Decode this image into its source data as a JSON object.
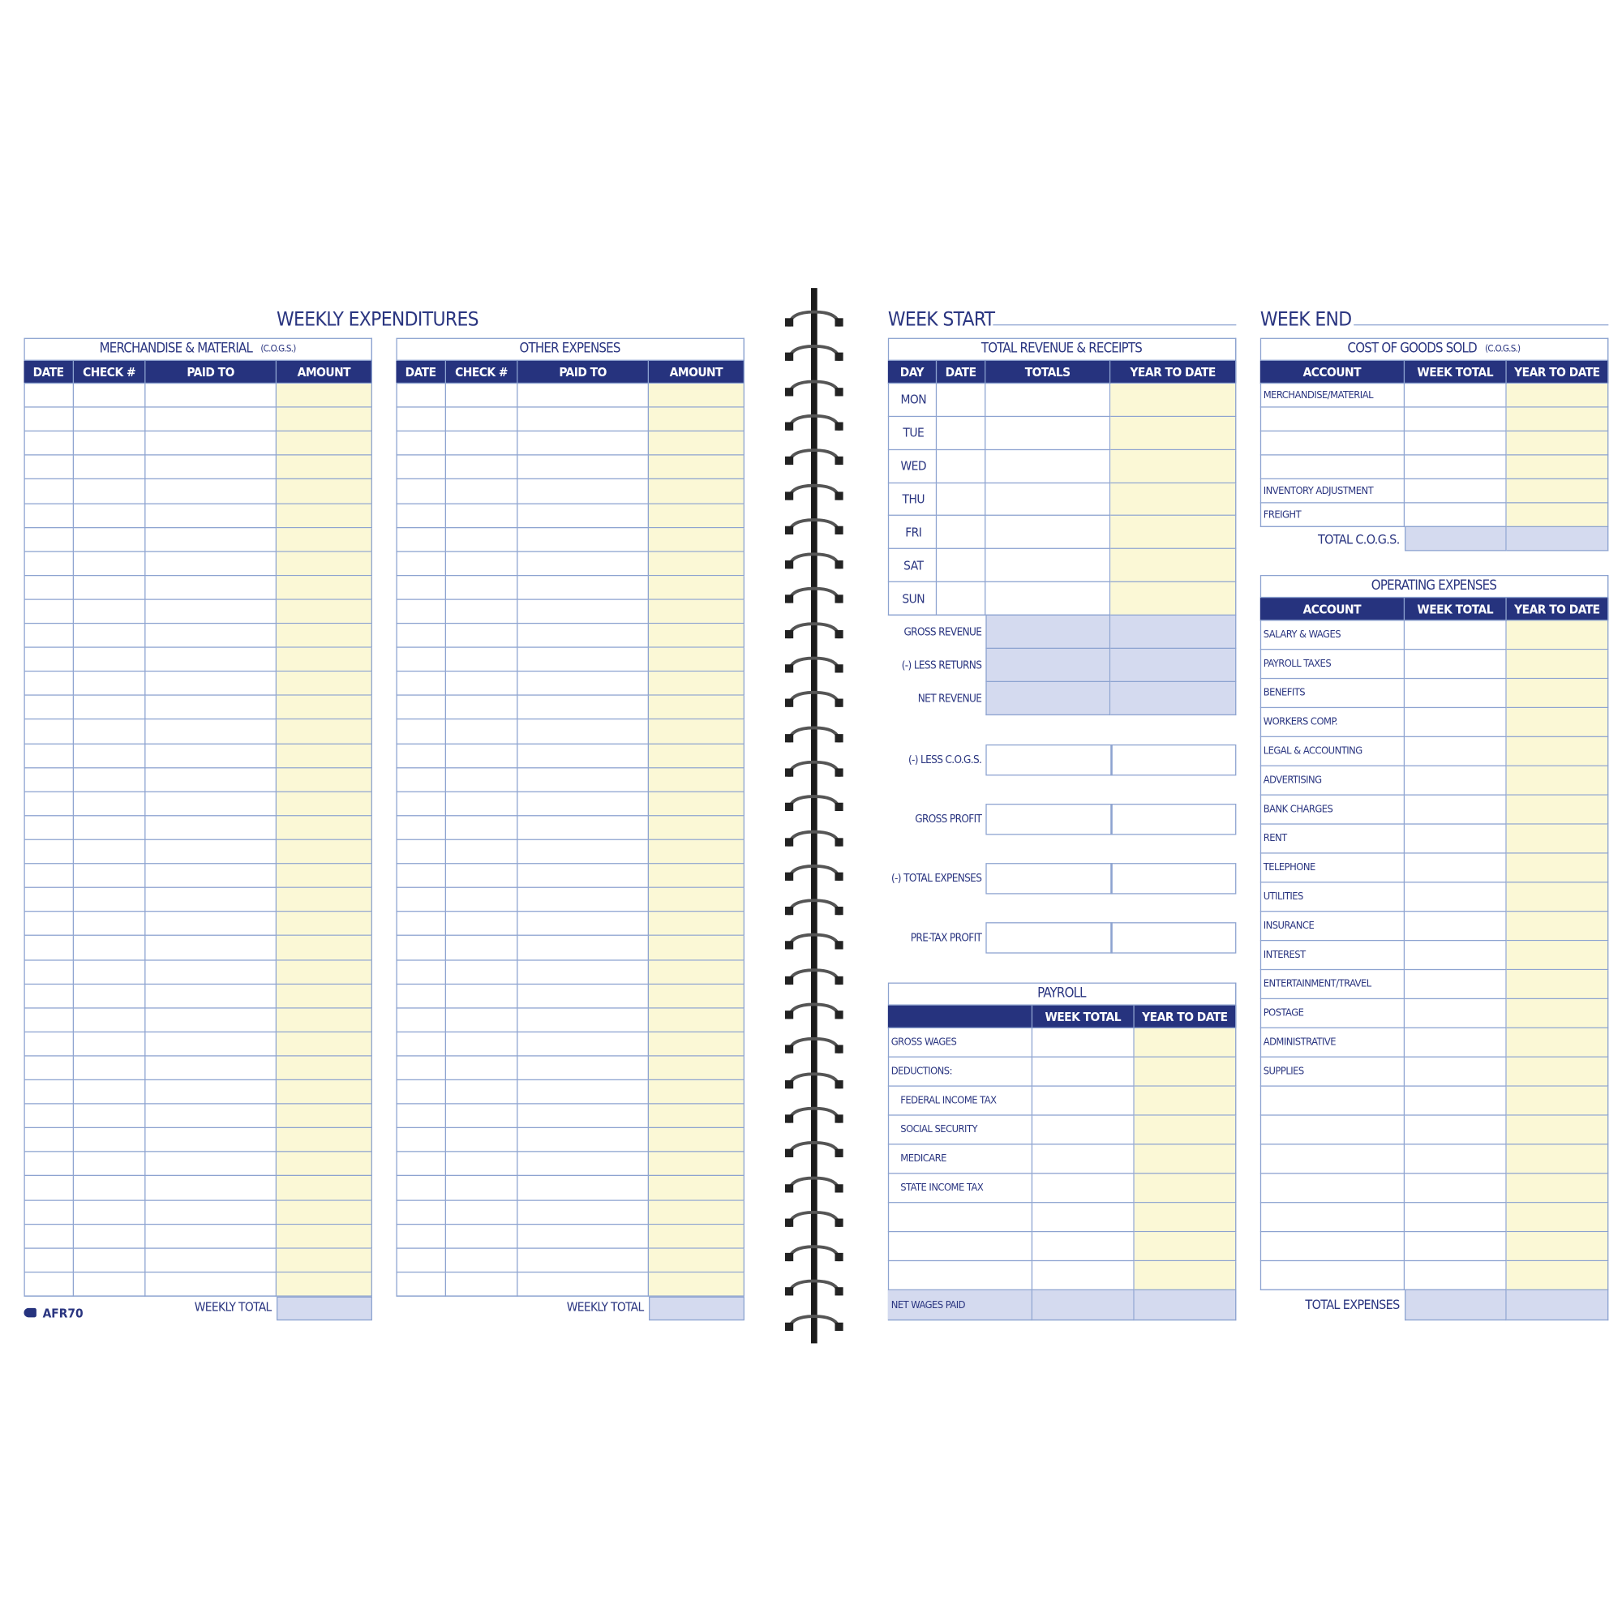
{
  "colors": {
    "navy": "#26337e",
    "line": "#8da3d0",
    "yellow": "#fbf8d6",
    "shade": "#d4daef"
  },
  "left_page": {
    "title": "WEEKLY EXPENDITURES",
    "merchandise": {
      "title": "MERCHANDISE & MATERIAL",
      "title_note": "(C.O.G.S.)",
      "columns": [
        "DATE",
        "CHECK #",
        "PAID TO",
        "AMOUNT"
      ],
      "total_label": "WEEKLY TOTAL"
    },
    "other": {
      "title": "OTHER EXPENSES",
      "columns": [
        "DATE",
        "CHECK #",
        "PAID TO",
        "AMOUNT"
      ],
      "total_label": "WEEKLY TOTAL"
    },
    "form_code": "AFR70"
  },
  "right_page": {
    "week_start_label": "WEEK START",
    "week_end_label": "WEEK END",
    "revenue": {
      "title": "TOTAL REVENUE & RECEIPTS",
      "columns": [
        "DAY",
        "DATE",
        "TOTALS",
        "YEAR TO DATE"
      ],
      "days": [
        "MON",
        "TUE",
        "WED",
        "THU",
        "FRI",
        "SAT",
        "SUN"
      ],
      "summary": [
        "GROSS REVENUE",
        "(-) LESS RETURNS",
        "NET REVENUE"
      ],
      "calc": [
        "(-) LESS C.O.G.S.",
        "GROSS PROFIT",
        "(-) TOTAL EXPENSES",
        "PRE-TAX PROFIT"
      ]
    },
    "payroll": {
      "title": "PAYROLL",
      "columns": [
        "",
        "WEEK TOTAL",
        "YEAR TO DATE"
      ],
      "rows": [
        "GROSS WAGES",
        "DEDUCTIONS:",
        "FEDERAL INCOME TAX",
        "SOCIAL SECURITY",
        "MEDICARE",
        "STATE INCOME TAX",
        "",
        "",
        ""
      ],
      "total_label": "NET WAGES PAID"
    },
    "cogs": {
      "title": "COST OF GOODS SOLD",
      "title_note": "(C.O.G.S.)",
      "columns": [
        "ACCOUNT",
        "WEEK TOTAL",
        "YEAR TO DATE"
      ],
      "rows": [
        "MERCHANDISE/MATERIAL",
        "",
        "",
        "",
        "INVENTORY ADJUSTMENT",
        "FREIGHT"
      ],
      "total_label": "TOTAL C.O.G.S."
    },
    "operating": {
      "title": "OPERATING EXPENSES",
      "columns": [
        "ACCOUNT",
        "WEEK TOTAL",
        "YEAR TO DATE"
      ],
      "rows": [
        "SALARY & WAGES",
        "PAYROLL TAXES",
        "BENEFITS",
        "WORKERS COMP.",
        "LEGAL & ACCOUNTING",
        "ADVERTISING",
        "BANK CHARGES",
        "RENT",
        "TELEPHONE",
        "UTILITIES",
        "INSURANCE",
        "INTEREST",
        "ENTERTAINMENT/TRAVEL",
        "POSTAGE",
        "ADMINISTRATIVE",
        "SUPPLIES",
        "",
        "",
        "",
        "",
        "",
        "",
        ""
      ],
      "total_label": "TOTAL EXPENSES"
    }
  }
}
